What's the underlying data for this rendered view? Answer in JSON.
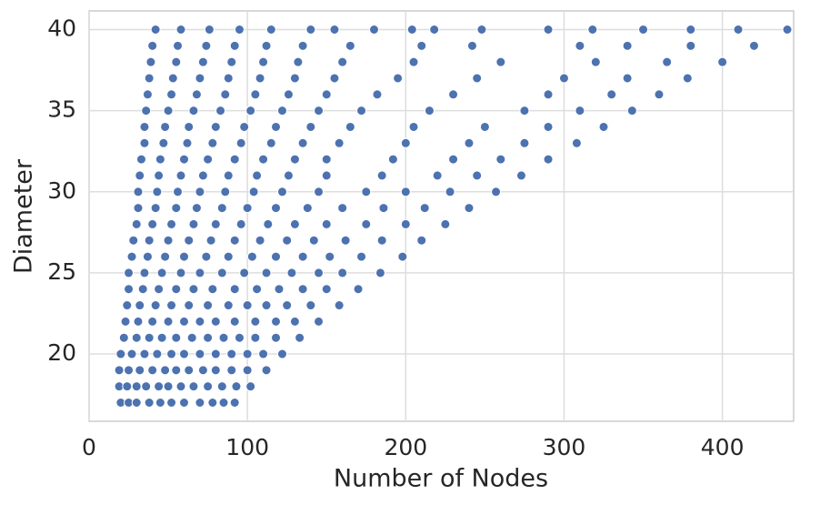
{
  "chart_data": {
    "type": "scatter",
    "xlabel": "Number of Nodes",
    "ylabel": "Diameter",
    "color": "#4c72b0",
    "grid": true,
    "xlim": [
      0,
      445
    ],
    "ylim": [
      15.85,
      41.15
    ],
    "xticks": [
      0,
      100,
      200,
      300,
      400
    ],
    "yticks": [
      20,
      25,
      30,
      35,
      40
    ],
    "x": [
      20,
      25,
      30,
      38,
      45,
      52,
      60,
      70,
      78,
      85,
      92,
      19,
      24,
      30,
      36,
      44,
      50,
      58,
      66,
      75,
      84,
      93,
      102,
      19,
      25,
      32,
      40,
      48,
      55,
      63,
      72,
      80,
      90,
      100,
      112,
      20,
      27,
      35,
      43,
      52,
      60,
      70,
      80,
      90,
      100,
      110,
      122,
      22,
      30,
      38,
      46,
      55,
      65,
      75,
      85,
      95,
      105,
      118,
      133,
      23,
      31,
      40,
      50,
      60,
      70,
      80,
      92,
      105,
      118,
      130,
      145,
      24,
      32,
      42,
      52,
      63,
      75,
      88,
      100,
      112,
      125,
      140,
      158,
      25,
      34,
      44,
      55,
      66,
      78,
      92,
      106,
      120,
      135,
      150,
      170,
      25,
      35,
      46,
      58,
      70,
      84,
      98,
      112,
      128,
      145,
      160,
      184,
      27,
      37,
      48,
      60,
      74,
      88,
      103,
      118,
      135,
      152,
      172,
      198,
      28,
      38,
      50,
      63,
      77,
      92,
      108,
      125,
      142,
      162,
      185,
      210,
      30,
      40,
      52,
      66,
      80,
      96,
      113,
      130,
      150,
      175,
      200,
      225,
      31,
      42,
      55,
      68,
      84,
      100,
      118,
      138,
      160,
      186,
      212,
      240,
      31,
      43,
      56,
      70,
      86,
      104,
      122,
      145,
      175,
      200,
      228,
      257,
      32,
      44,
      58,
      72,
      88,
      106,
      126,
      150,
      185,
      220,
      245,
      273,
      33,
      45,
      60,
      75,
      92,
      110,
      130,
      150,
      192,
      230,
      260,
      290,
      35,
      47,
      62,
      78,
      96,
      115,
      135,
      158,
      200,
      240,
      275,
      308,
      35,
      48,
      63,
      80,
      98,
      118,
      140,
      165,
      205,
      250,
      290,
      325,
      36,
      50,
      66,
      83,
      102,
      122,
      145,
      172,
      215,
      275,
      310,
      343,
      37,
      52,
      68,
      86,
      105,
      126,
      150,
      182,
      230,
      290,
      330,
      360,
      38,
      53,
      70,
      88,
      108,
      130,
      155,
      195,
      245,
      300,
      340,
      378,
      39,
      55,
      72,
      90,
      110,
      132,
      160,
      205,
      260,
      320,
      365,
      400,
      40,
      56,
      74,
      92,
      112,
      135,
      165,
      210,
      242,
      310,
      340,
      380,
      420,
      42,
      58,
      76,
      95,
      115,
      140,
      155,
      180,
      204,
      218,
      248,
      290,
      318,
      350,
      380,
      410,
      441
    ],
    "values": [
      17,
      17,
      17,
      17,
      17,
      17,
      17,
      17,
      17,
      17,
      17,
      18,
      18,
      18,
      18,
      18,
      18,
      18,
      18,
      18,
      18,
      18,
      18,
      19,
      19,
      19,
      19,
      19,
      19,
      19,
      19,
      19,
      19,
      19,
      19,
      20,
      20,
      20,
      20,
      20,
      20,
      20,
      20,
      20,
      20,
      20,
      20,
      21,
      21,
      21,
      21,
      21,
      21,
      21,
      21,
      21,
      21,
      21,
      21,
      22,
      22,
      22,
      22,
      22,
      22,
      22,
      22,
      22,
      22,
      22,
      22,
      23,
      23,
      23,
      23,
      23,
      23,
      23,
      23,
      23,
      23,
      23,
      23,
      24,
      24,
      24,
      24,
      24,
      24,
      24,
      24,
      24,
      24,
      24,
      24,
      25,
      25,
      25,
      25,
      25,
      25,
      25,
      25,
      25,
      25,
      25,
      25,
      26,
      26,
      26,
      26,
      26,
      26,
      26,
      26,
      26,
      26,
      26,
      26,
      27,
      27,
      27,
      27,
      27,
      27,
      27,
      27,
      27,
      27,
      27,
      27,
      28,
      28,
      28,
      28,
      28,
      28,
      28,
      28,
      28,
      28,
      28,
      28,
      29,
      29,
      29,
      29,
      29,
      29,
      29,
      29,
      29,
      29,
      29,
      29,
      30,
      30,
      30,
      30,
      30,
      30,
      30,
      30,
      30,
      30,
      30,
      30,
      31,
      31,
      31,
      31,
      31,
      31,
      31,
      31,
      31,
      31,
      31,
      31,
      32,
      32,
      32,
      32,
      32,
      32,
      32,
      32,
      32,
      32,
      32,
      32,
      33,
      33,
      33,
      33,
      33,
      33,
      33,
      33,
      33,
      33,
      33,
      33,
      34,
      34,
      34,
      34,
      34,
      34,
      34,
      34,
      34,
      34,
      34,
      34,
      35,
      35,
      35,
      35,
      35,
      35,
      35,
      35,
      35,
      35,
      35,
      35,
      36,
      36,
      36,
      36,
      36,
      36,
      36,
      36,
      36,
      36,
      36,
      36,
      37,
      37,
      37,
      37,
      37,
      37,
      37,
      37,
      37,
      37,
      37,
      37,
      38,
      38,
      38,
      38,
      38,
      38,
      38,
      38,
      38,
      38,
      38,
      38,
      39,
      39,
      39,
      39,
      39,
      39,
      39,
      39,
      39,
      39,
      39,
      39,
      39,
      40,
      40,
      40,
      40,
      40,
      40,
      40,
      40,
      40,
      40,
      40,
      40,
      40,
      40,
      40,
      40,
      40
    ]
  }
}
